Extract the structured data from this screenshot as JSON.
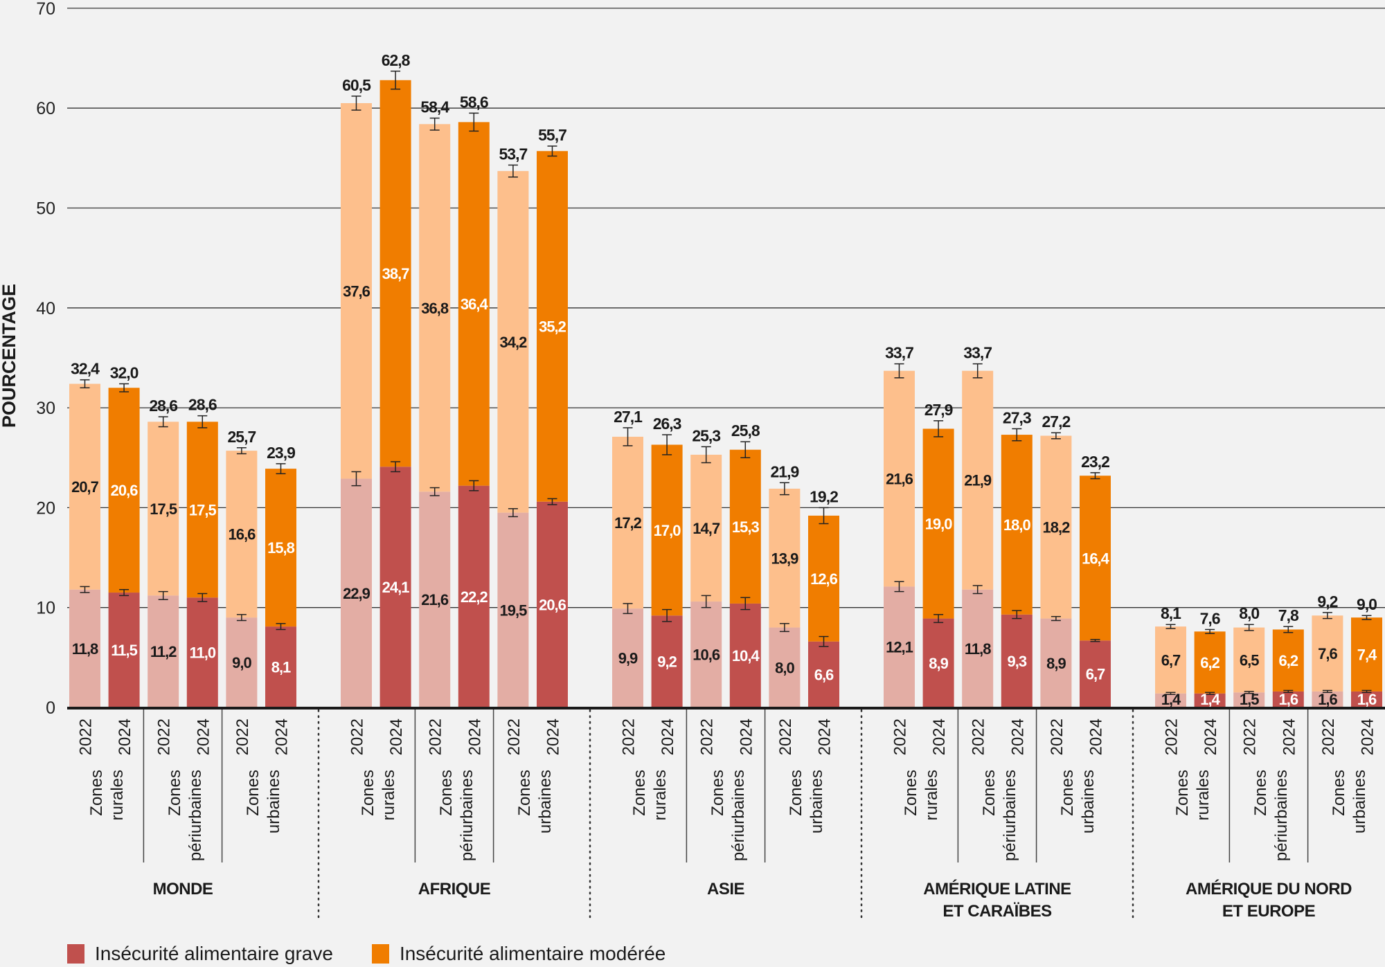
{
  "chart_data": {
    "type": "bar",
    "stacked": true,
    "title": "",
    "xlabel": "",
    "ylabel": "POURCENTAGE",
    "ylim": [
      0,
      70
    ],
    "yticks": [
      0,
      10,
      20,
      30,
      40,
      50,
      60,
      70
    ],
    "grid": true,
    "legend_position": "bottom-left",
    "colors": {
      "grave_2022": "#E3ADA4",
      "grave_2024": "#C0504D",
      "moderee_2022": "#FDBF8C",
      "moderee_2024": "#F07D00",
      "background": "#F2F2F2"
    },
    "legend": [
      {
        "label": "Insécurité alimentaire grave",
        "color": "#C0504D"
      },
      {
        "label": "Insécurité alimentaire modérée",
        "color": "#F07D00"
      }
    ],
    "years": [
      "2022",
      "2024"
    ],
    "zones": [
      "Zones rurales",
      "Zones périurbaines",
      "Zones urbaines"
    ],
    "zone_lines": [
      [
        "Zones",
        "rurales"
      ],
      [
        "Zones",
        "périurbaines"
      ],
      [
        "Zones",
        "urbaines"
      ]
    ],
    "regions": [
      {
        "name": "MONDE",
        "name_lines": [
          "MONDE"
        ],
        "bars": [
          {
            "zone": "Zones rurales",
            "year": "2022",
            "grave": 11.8,
            "moderee": 20.7,
            "total": 32.4,
            "grave_err": 0.3,
            "total_err": 0.4
          },
          {
            "zone": "Zones rurales",
            "year": "2024",
            "grave": 11.5,
            "moderee": 20.6,
            "total": 32.0,
            "grave_err": 0.3,
            "total_err": 0.4
          },
          {
            "zone": "Zones périurbaines",
            "year": "2022",
            "grave": 11.2,
            "moderee": 17.5,
            "total": 28.6,
            "grave_err": 0.4,
            "total_err": 0.5
          },
          {
            "zone": "Zones périurbaines",
            "year": "2024",
            "grave": 11.0,
            "moderee": 17.5,
            "total": 28.6,
            "grave_err": 0.4,
            "total_err": 0.6
          },
          {
            "zone": "Zones urbaines",
            "year": "2022",
            "grave": 9.0,
            "moderee": 16.6,
            "total": 25.7,
            "grave_err": 0.3,
            "total_err": 0.3
          },
          {
            "zone": "Zones urbaines",
            "year": "2024",
            "grave": 8.1,
            "moderee": 15.8,
            "total": 23.9,
            "grave_err": 0.3,
            "total_err": 0.5
          }
        ]
      },
      {
        "name": "AFRIQUE",
        "name_lines": [
          "AFRIQUE"
        ],
        "bars": [
          {
            "zone": "Zones rurales",
            "year": "2022",
            "grave": 22.9,
            "moderee": 37.6,
            "total": 60.5,
            "grave_err": 0.7,
            "total_err": 0.7
          },
          {
            "zone": "Zones rurales",
            "year": "2024",
            "grave": 24.1,
            "moderee": 38.7,
            "total": 62.8,
            "grave_err": 0.5,
            "total_err": 0.9
          },
          {
            "zone": "Zones périurbaines",
            "year": "2022",
            "grave": 21.6,
            "moderee": 36.8,
            "total": 58.4,
            "grave_err": 0.4,
            "total_err": 0.6
          },
          {
            "zone": "Zones périurbaines",
            "year": "2024",
            "grave": 22.2,
            "moderee": 36.4,
            "total": 58.6,
            "grave_err": 0.5,
            "total_err": 0.9
          },
          {
            "zone": "Zones urbaines",
            "year": "2022",
            "grave": 19.5,
            "moderee": 34.2,
            "total": 53.7,
            "grave_err": 0.4,
            "total_err": 0.6
          },
          {
            "zone": "Zones urbaines",
            "year": "2024",
            "grave": 20.6,
            "moderee": 35.2,
            "total": 55.7,
            "grave_err": 0.3,
            "total_err": 0.5
          }
        ]
      },
      {
        "name": "ASIE",
        "name_lines": [
          "ASIE"
        ],
        "bars": [
          {
            "zone": "Zones rurales",
            "year": "2022",
            "grave": 9.9,
            "moderee": 17.2,
            "total": 27.1,
            "grave_err": 0.5,
            "total_err": 0.9
          },
          {
            "zone": "Zones rurales",
            "year": "2024",
            "grave": 9.2,
            "moderee": 17.0,
            "total": 26.3,
            "grave_err": 0.6,
            "total_err": 1.0
          },
          {
            "zone": "Zones périurbaines",
            "year": "2022",
            "grave": 10.6,
            "moderee": 14.7,
            "total": 25.3,
            "grave_err": 0.6,
            "total_err": 0.8
          },
          {
            "zone": "Zones périurbaines",
            "year": "2024",
            "grave": 10.4,
            "moderee": 15.3,
            "total": 25.8,
            "grave_err": 0.6,
            "total_err": 0.8
          },
          {
            "zone": "Zones urbaines",
            "year": "2022",
            "grave": 8.0,
            "moderee": 13.9,
            "total": 21.9,
            "grave_err": 0.4,
            "total_err": 0.6
          },
          {
            "zone": "Zones urbaines",
            "year": "2024",
            "grave": 6.6,
            "moderee": 12.6,
            "total": 19.2,
            "grave_err": 0.5,
            "total_err": 0.8
          }
        ]
      },
      {
        "name": "AMÉRIQUE LATINE ET CARAÏBES",
        "name_lines": [
          "AMÉRIQUE LATINE",
          "ET CARAÏBES"
        ],
        "bars": [
          {
            "zone": "Zones rurales",
            "year": "2022",
            "grave": 12.1,
            "moderee": 21.6,
            "total": 33.7,
            "grave_err": 0.5,
            "total_err": 0.7
          },
          {
            "zone": "Zones rurales",
            "year": "2024",
            "grave": 8.9,
            "moderee": 19.0,
            "total": 27.9,
            "grave_err": 0.4,
            "total_err": 0.8
          },
          {
            "zone": "Zones périurbaines",
            "year": "2022",
            "grave": 11.8,
            "moderee": 21.9,
            "total": 33.7,
            "grave_err": 0.4,
            "total_err": 0.7
          },
          {
            "zone": "Zones périurbaines",
            "year": "2024",
            "grave": 9.3,
            "moderee": 18.0,
            "total": 27.3,
            "grave_err": 0.4,
            "total_err": 0.6
          },
          {
            "zone": "Zones urbaines",
            "year": "2022",
            "grave": 8.9,
            "moderee": 18.2,
            "total": 27.2,
            "grave_err": 0.2,
            "total_err": 0.3
          },
          {
            "zone": "Zones urbaines",
            "year": "2024",
            "grave": 6.7,
            "moderee": 16.4,
            "total": 23.2,
            "grave_err": 0.1,
            "total_err": 0.3
          }
        ]
      },
      {
        "name": "AMÉRIQUE DU NORD ET EUROPE",
        "name_lines": [
          "AMÉRIQUE DU NORD",
          "ET EUROPE"
        ],
        "bars": [
          {
            "zone": "Zones rurales",
            "year": "2022",
            "grave": 1.4,
            "moderee": 6.7,
            "total": 8.1,
            "grave_err": 0.1,
            "total_err": 0.2
          },
          {
            "zone": "Zones rurales",
            "year": "2024",
            "grave": 1.4,
            "moderee": 6.2,
            "total": 7.6,
            "grave_err": 0.1,
            "total_err": 0.2
          },
          {
            "zone": "Zones périurbaines",
            "year": "2022",
            "grave": 1.5,
            "moderee": 6.5,
            "total": 8.0,
            "grave_err": 0.1,
            "total_err": 0.3
          },
          {
            "zone": "Zones périurbaines",
            "year": "2024",
            "grave": 1.6,
            "moderee": 6.2,
            "total": 7.8,
            "grave_err": 0.1,
            "total_err": 0.3
          },
          {
            "zone": "Zones urbaines",
            "year": "2022",
            "grave": 1.6,
            "moderee": 7.6,
            "total": 9.2,
            "grave_err": 0.1,
            "total_err": 0.3
          },
          {
            "zone": "Zones urbaines",
            "year": "2024",
            "grave": 1.6,
            "moderee": 7.4,
            "total": 9.0,
            "grave_err": 0.1,
            "total_err": 0.2
          }
        ]
      }
    ]
  }
}
